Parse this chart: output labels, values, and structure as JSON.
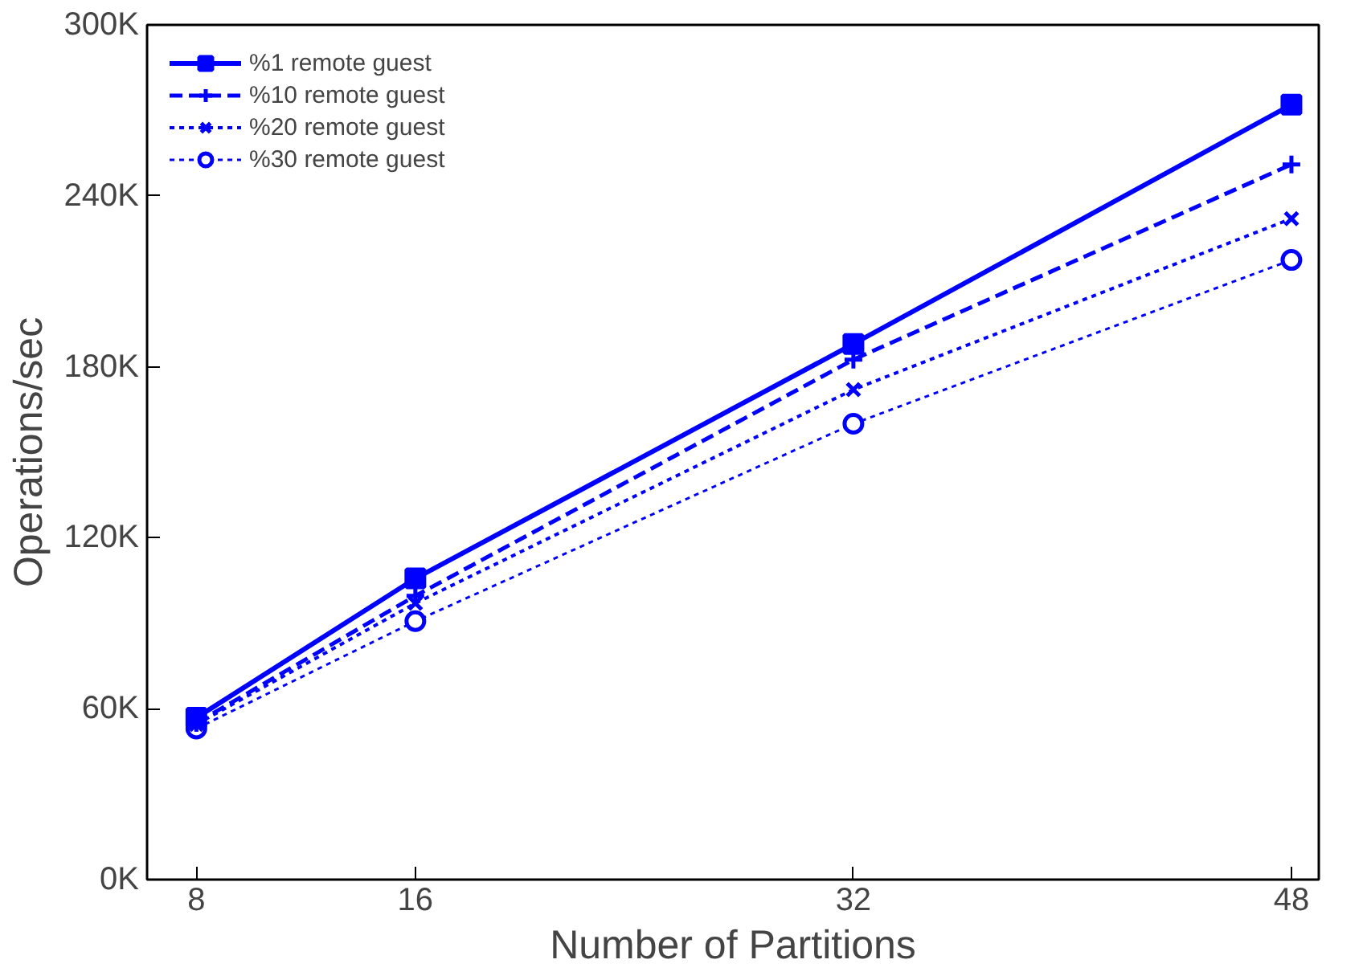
{
  "chart_data": {
    "type": "line",
    "xlabel": "Number of Partitions",
    "ylabel": "Operations/sec",
    "x": [
      8,
      16,
      32,
      48
    ],
    "series": [
      {
        "name": "%1 remote guest",
        "color": "#0000ff",
        "marker": "square",
        "line_style": "solid",
        "values": [
          56800,
          105700,
          188000,
          272000
        ]
      },
      {
        "name": "%10 remote guest",
        "color": "#0000ff",
        "marker": "cross",
        "line_style": "dashed",
        "values": [
          55000,
          99600,
          182500,
          251000
        ]
      },
      {
        "name": "%20 remote guest",
        "color": "#0000ff",
        "marker": "x",
        "line_style": "dotted",
        "values": [
          54500,
          97000,
          172000,
          232000
        ]
      },
      {
        "name": "%30 remote guest",
        "color": "#0000ff",
        "marker": "circle",
        "line_style": "dotted",
        "values": [
          53000,
          90700,
          160000,
          217500
        ]
      }
    ],
    "xlim": [
      6.2,
      49
    ],
    "xticks": [
      8,
      16,
      32,
      48
    ],
    "ylim": [
      0,
      300000
    ],
    "yticks": [
      {
        "value": 0,
        "label": "0K"
      },
      {
        "value": 60000,
        "label": "60K"
      },
      {
        "value": 120000,
        "label": "120K"
      },
      {
        "value": 180000,
        "label": "180K"
      },
      {
        "value": 240000,
        "label": "240K"
      },
      {
        "value": 300000,
        "label": "300K"
      }
    ],
    "grid": false,
    "legend": "top left"
  }
}
